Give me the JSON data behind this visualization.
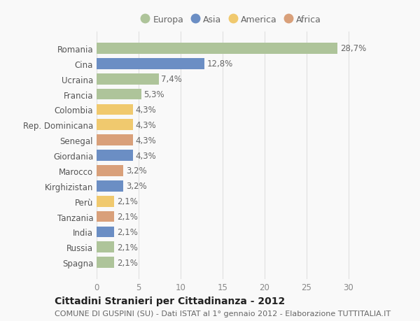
{
  "categories": [
    "Spagna",
    "Russia",
    "India",
    "Tanzania",
    "Perù",
    "Kirghizistan",
    "Marocco",
    "Giordania",
    "Senegal",
    "Rep. Dominicana",
    "Colombia",
    "Francia",
    "Ucraina",
    "Cina",
    "Romania"
  ],
  "values": [
    2.1,
    2.1,
    2.1,
    2.1,
    2.1,
    3.2,
    3.2,
    4.3,
    4.3,
    4.3,
    4.3,
    5.3,
    7.4,
    12.8,
    28.7
  ],
  "labels": [
    "2,1%",
    "2,1%",
    "2,1%",
    "2,1%",
    "2,1%",
    "3,2%",
    "3,2%",
    "4,3%",
    "4,3%",
    "4,3%",
    "4,3%",
    "5,3%",
    "7,4%",
    "12,8%",
    "28,7%"
  ],
  "continents": [
    "Europa",
    "Europa",
    "Asia",
    "Africa",
    "America",
    "Asia",
    "Africa",
    "Asia",
    "Africa",
    "America",
    "America",
    "Europa",
    "Europa",
    "Asia",
    "Europa"
  ],
  "continent_colors": {
    "Europa": "#aec49a",
    "Asia": "#6b8ec4",
    "America": "#f0c96e",
    "Africa": "#d9a07a"
  },
  "legend_order": [
    "Europa",
    "Asia",
    "America",
    "Africa"
  ],
  "title_bold": "Cittadini Stranieri per Cittadinanza - 2012",
  "subtitle": "COMUNE DI GUSPINI (SU) - Dati ISTAT al 1° gennaio 2012 - Elaborazione TUTTITALIA.IT",
  "xlim": [
    0,
    32
  ],
  "xticks": [
    0,
    5,
    10,
    15,
    20,
    25,
    30
  ],
  "bg_color": "#f9f9f9",
  "grid_color": "#e0e0e0",
  "bar_height": 0.72,
  "label_fontsize": 8.5,
  "title_fontsize": 10,
  "subtitle_fontsize": 8,
  "ytick_fontsize": 8.5,
  "xtick_fontsize": 8.5,
  "legend_fontsize": 9
}
